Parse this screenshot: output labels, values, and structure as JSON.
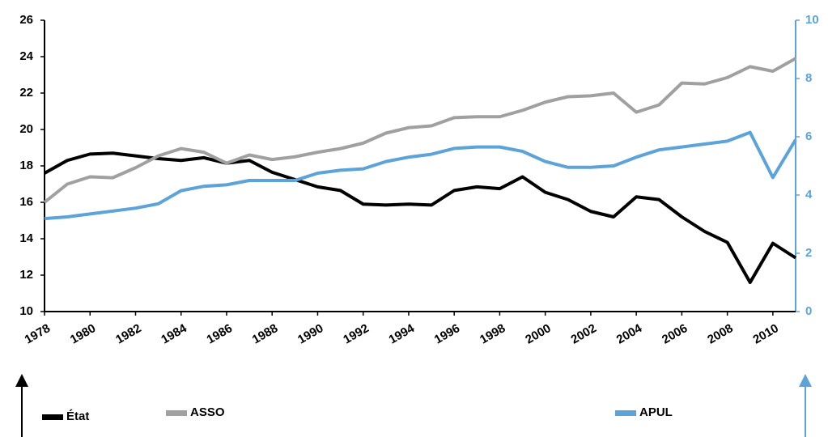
{
  "chart_data": {
    "type": "line",
    "x": [
      1978,
      1979,
      1980,
      1981,
      1982,
      1983,
      1984,
      1985,
      1986,
      1987,
      1988,
      1989,
      1990,
      1991,
      1992,
      1993,
      1994,
      1995,
      1996,
      1997,
      1998,
      1999,
      2000,
      2001,
      2002,
      2003,
      2004,
      2005,
      2006,
      2007,
      2008,
      2009,
      2010,
      2011
    ],
    "xlim": [
      1978,
      2011
    ],
    "xticks": [
      1978,
      1980,
      1982,
      1984,
      1986,
      1988,
      1990,
      1992,
      1994,
      1996,
      1998,
      2000,
      2002,
      2004,
      2006,
      2008,
      2010
    ],
    "ylim": [
      10,
      26
    ],
    "yticks": [
      10,
      12,
      14,
      16,
      18,
      20,
      22,
      24,
      26
    ],
    "y2lim": [
      0,
      10
    ],
    "y2ticks": [
      0,
      2,
      4,
      6,
      8,
      10
    ],
    "y2color": "#5ba3d9",
    "series": [
      {
        "name": "État",
        "color": "#000000",
        "values": [
          17.6,
          18.3,
          18.65,
          18.7,
          18.55,
          18.4,
          18.3,
          18.45,
          18.15,
          18.3,
          17.65,
          17.25,
          16.85,
          16.65,
          15.9,
          15.85,
          15.9,
          15.85,
          16.65,
          16.85,
          16.75,
          17.4,
          16.55,
          16.15,
          15.5,
          15.2,
          16.3,
          16.15,
          15.2,
          14.4,
          13.8,
          11.6,
          13.75,
          12.95
        ]
      },
      {
        "name": "ASSO",
        "color": "#a0a0a0",
        "values": [
          16.0,
          17.0,
          17.4,
          17.35,
          17.9,
          18.55,
          18.95,
          18.75,
          18.15,
          18.6,
          18.35,
          18.5,
          18.75,
          18.95,
          19.25,
          19.8,
          20.1,
          20.2,
          20.65,
          20.7,
          20.7,
          21.05,
          21.5,
          21.8,
          21.85,
          22.0,
          20.95,
          21.35,
          22.55,
          22.5,
          22.85,
          23.45,
          23.2,
          23.9
        ]
      },
      {
        "name": "APUL",
        "color": "#5ba3d9",
        "axis": "y2",
        "values": [
          3.19,
          3.25,
          3.35,
          3.45,
          3.55,
          3.7,
          4.15,
          4.3,
          4.35,
          4.5,
          4.5,
          4.5,
          4.75,
          4.85,
          4.9,
          5.15,
          5.3,
          5.4,
          5.6,
          5.65,
          5.65,
          5.5,
          5.15,
          4.95,
          4.95,
          5.0,
          5.3,
          5.55,
          5.65,
          5.75,
          5.85,
          6.15,
          4.6,
          5.9
        ]
      }
    ]
  }
}
